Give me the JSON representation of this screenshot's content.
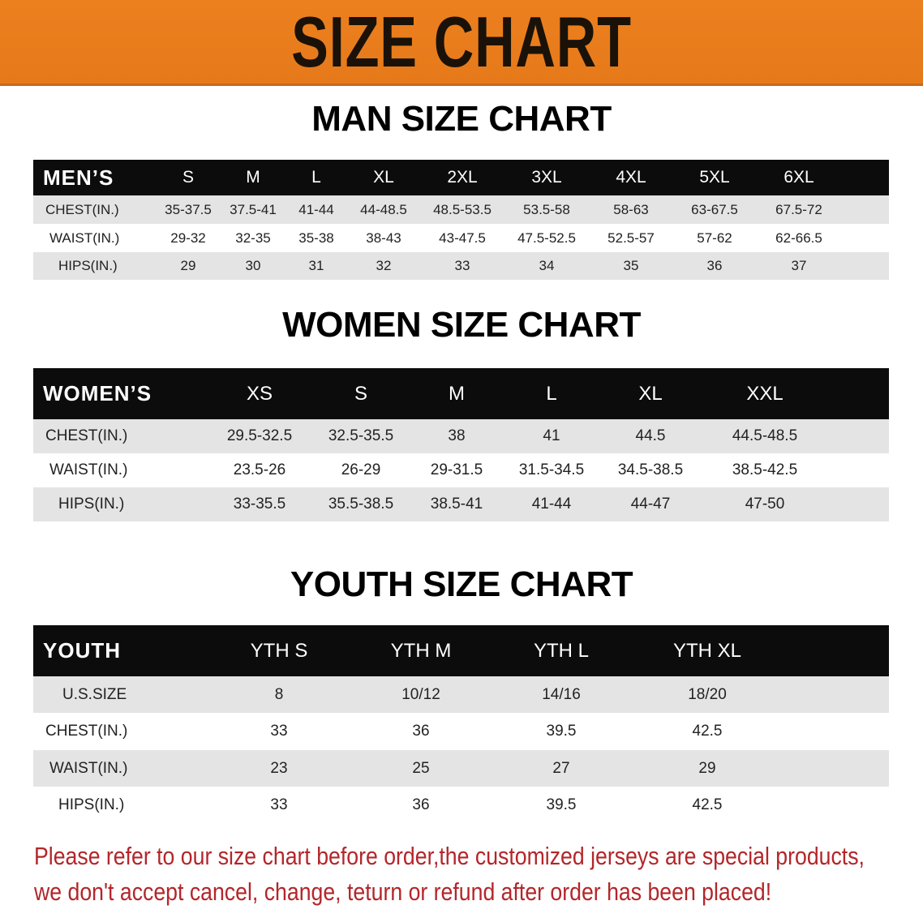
{
  "banner": {
    "title": "SIZE CHART",
    "color": "#ea7d1d"
  },
  "men": {
    "title": "MAN SIZE CHART",
    "header": [
      "MEN’S",
      "S",
      "M",
      "L",
      "XL",
      "2XL",
      "3XL",
      "4XL",
      "5XL",
      "6XL"
    ],
    "rows": [
      [
        "CHEST(IN.)",
        "35-37.5",
        "37.5-41",
        "41-44",
        "44-48.5",
        "48.5-53.5",
        "53.5-58",
        "58-63",
        "63-67.5",
        "67.5-72"
      ],
      [
        "WAIST(IN.)",
        "29-32",
        "32-35",
        "35-38",
        "38-43",
        "43-47.5",
        "47.5-52.5",
        "52.5-57",
        "57-62",
        "62-66.5"
      ],
      [
        "HIPS(IN.)",
        "29",
        "30",
        "31",
        "32",
        "33",
        "34",
        "35",
        "36",
        "37"
      ]
    ]
  },
  "women": {
    "title": "WOMEN SIZE CHART",
    "header": [
      "WOMEN’S",
      "XS",
      "S",
      "M",
      "L",
      "XL",
      "XXL"
    ],
    "rows": [
      [
        "CHEST(IN.)",
        "29.5-32.5",
        "32.5-35.5",
        "38",
        "41",
        "44.5",
        "44.5-48.5"
      ],
      [
        "WAIST(IN.)",
        "23.5-26",
        "26-29",
        "29-31.5",
        "31.5-34.5",
        "34.5-38.5",
        "38.5-42.5"
      ],
      [
        "HIPS(IN.)",
        "33-35.5",
        "35.5-38.5",
        "38.5-41",
        "41-44",
        "44-47",
        "47-50"
      ]
    ]
  },
  "youth": {
    "title": "YOUTH SIZE CHART",
    "header": [
      "YOUTH",
      "YTH S",
      "YTH M",
      "YTH L",
      "YTH XL"
    ],
    "rows": [
      [
        "U.S.SIZE",
        "8",
        "10/12",
        "14/16",
        "18/20"
      ],
      [
        "CHEST(IN.)",
        "33",
        "36",
        "39.5",
        "42.5"
      ],
      [
        "WAIST(IN.)",
        "23",
        "25",
        "27",
        "29"
      ],
      [
        "HIPS(IN.)",
        "33",
        "36",
        "39.5",
        "42.5"
      ]
    ]
  },
  "footer": {
    "line1": "Please refer to our size chart before order,the customized jerseys are special products,",
    "line2": "we don't accept cancel, change, teturn or refund after order has been placed!",
    "color": "#b3262a"
  }
}
